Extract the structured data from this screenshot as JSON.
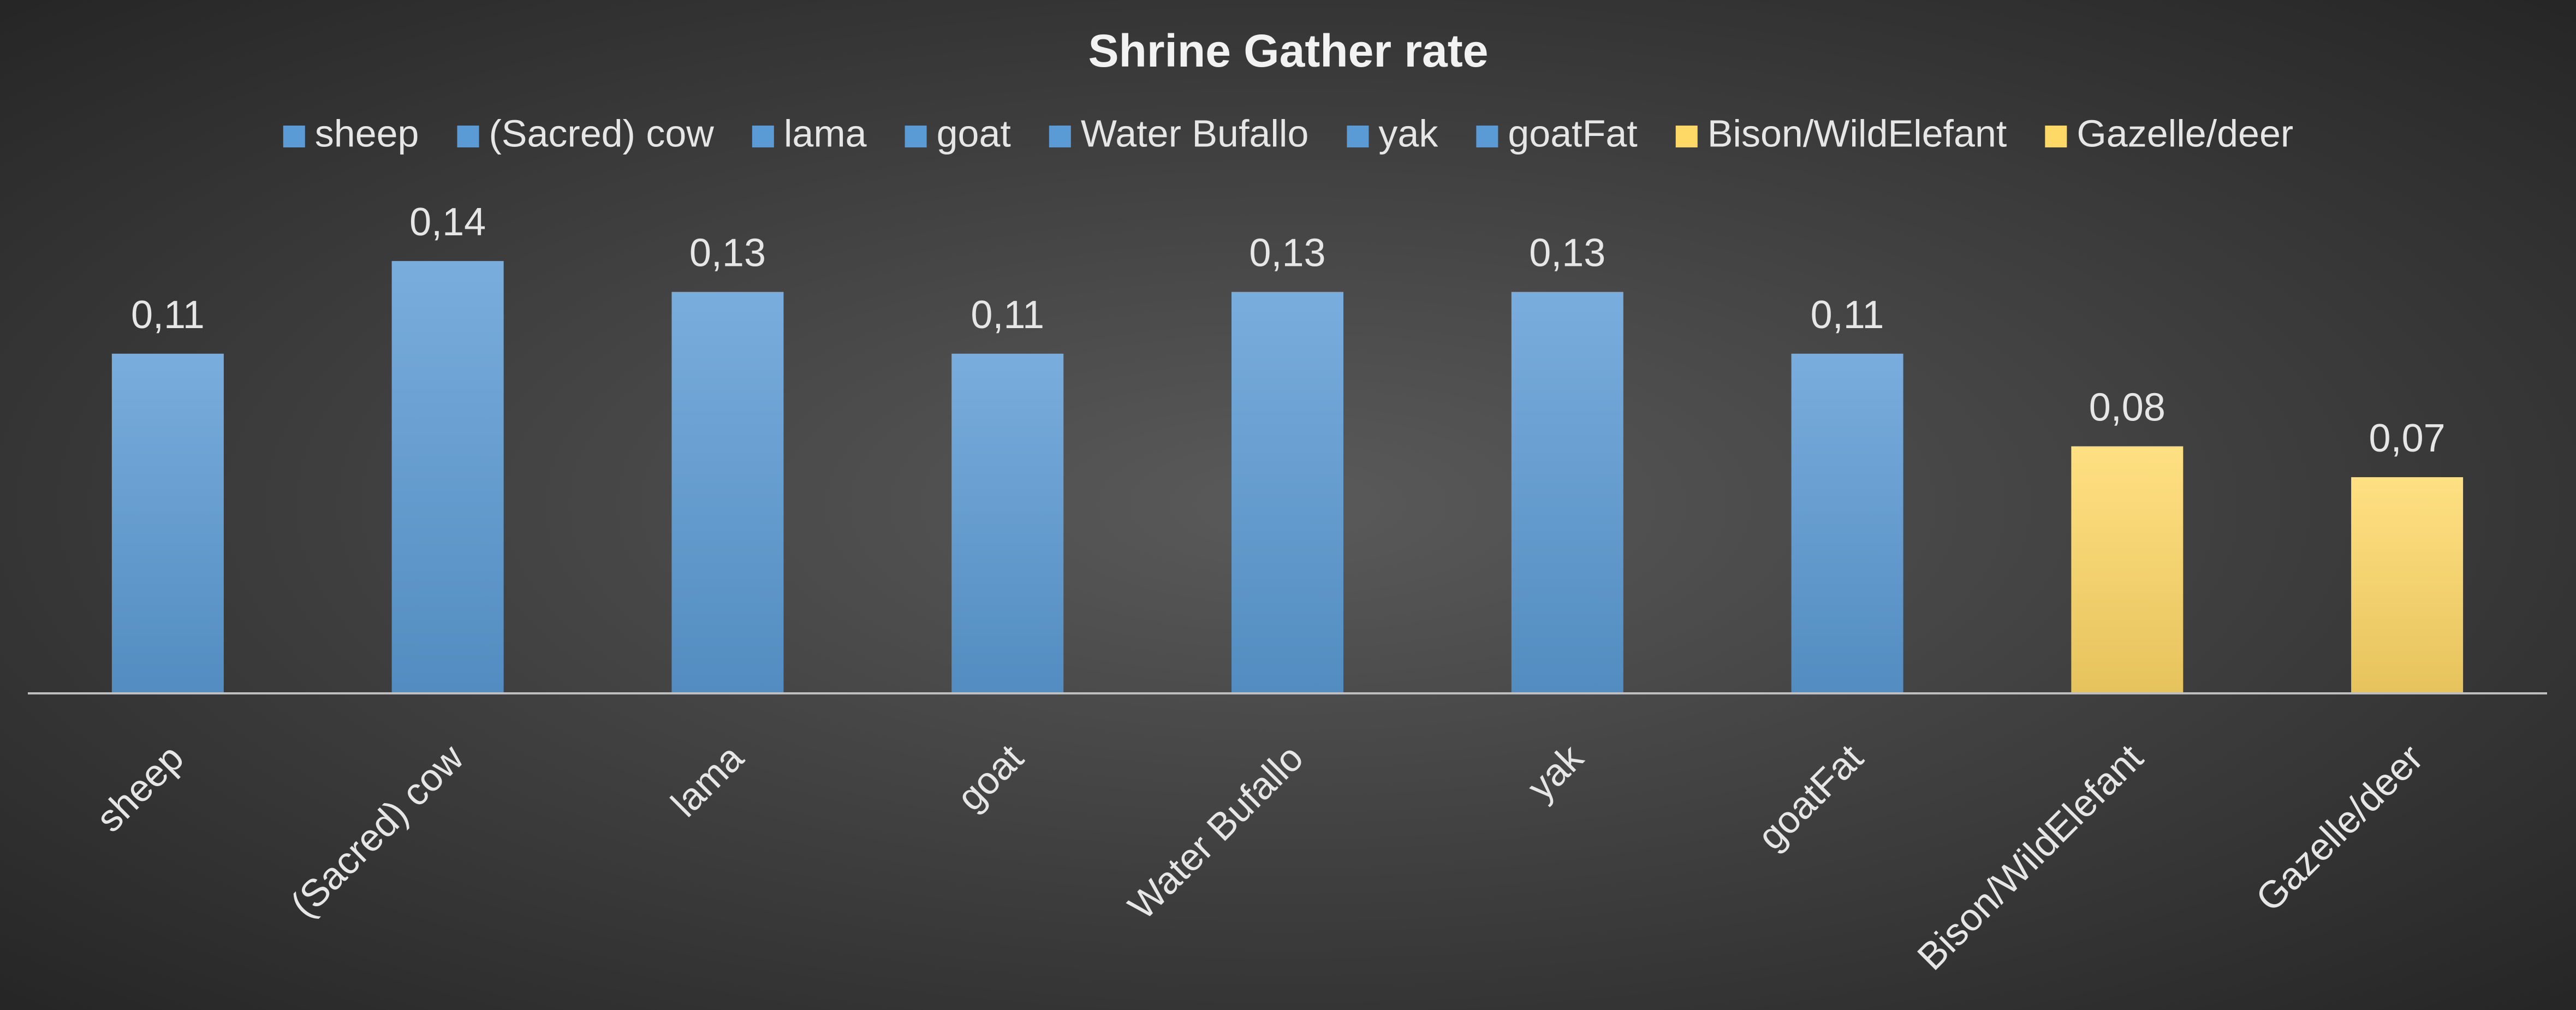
{
  "chart_data": {
    "type": "bar",
    "title": "Shrine Gather rate",
    "categories": [
      "sheep",
      "(Sacred) cow",
      "lama",
      "goat",
      "Water Bufallo",
      "yak",
      "goatFat",
      "Bison/WildElefant",
      "Gazelle/deer"
    ],
    "values": [
      0.11,
      0.14,
      0.13,
      0.11,
      0.13,
      0.13,
      0.11,
      0.08,
      0.07
    ],
    "value_labels": [
      "0,11",
      "0,14",
      "0,13",
      "0,11",
      "0,13",
      "0,13",
      "0,11",
      "0,08",
      "0,07"
    ],
    "colors": [
      "#5b9bd5",
      "#5b9bd5",
      "#5b9bd5",
      "#5b9bd5",
      "#5b9bd5",
      "#5b9bd5",
      "#5b9bd5",
      "#ffd966",
      "#ffd966"
    ],
    "ylim": [
      0,
      0.16
    ],
    "legend": "top"
  }
}
